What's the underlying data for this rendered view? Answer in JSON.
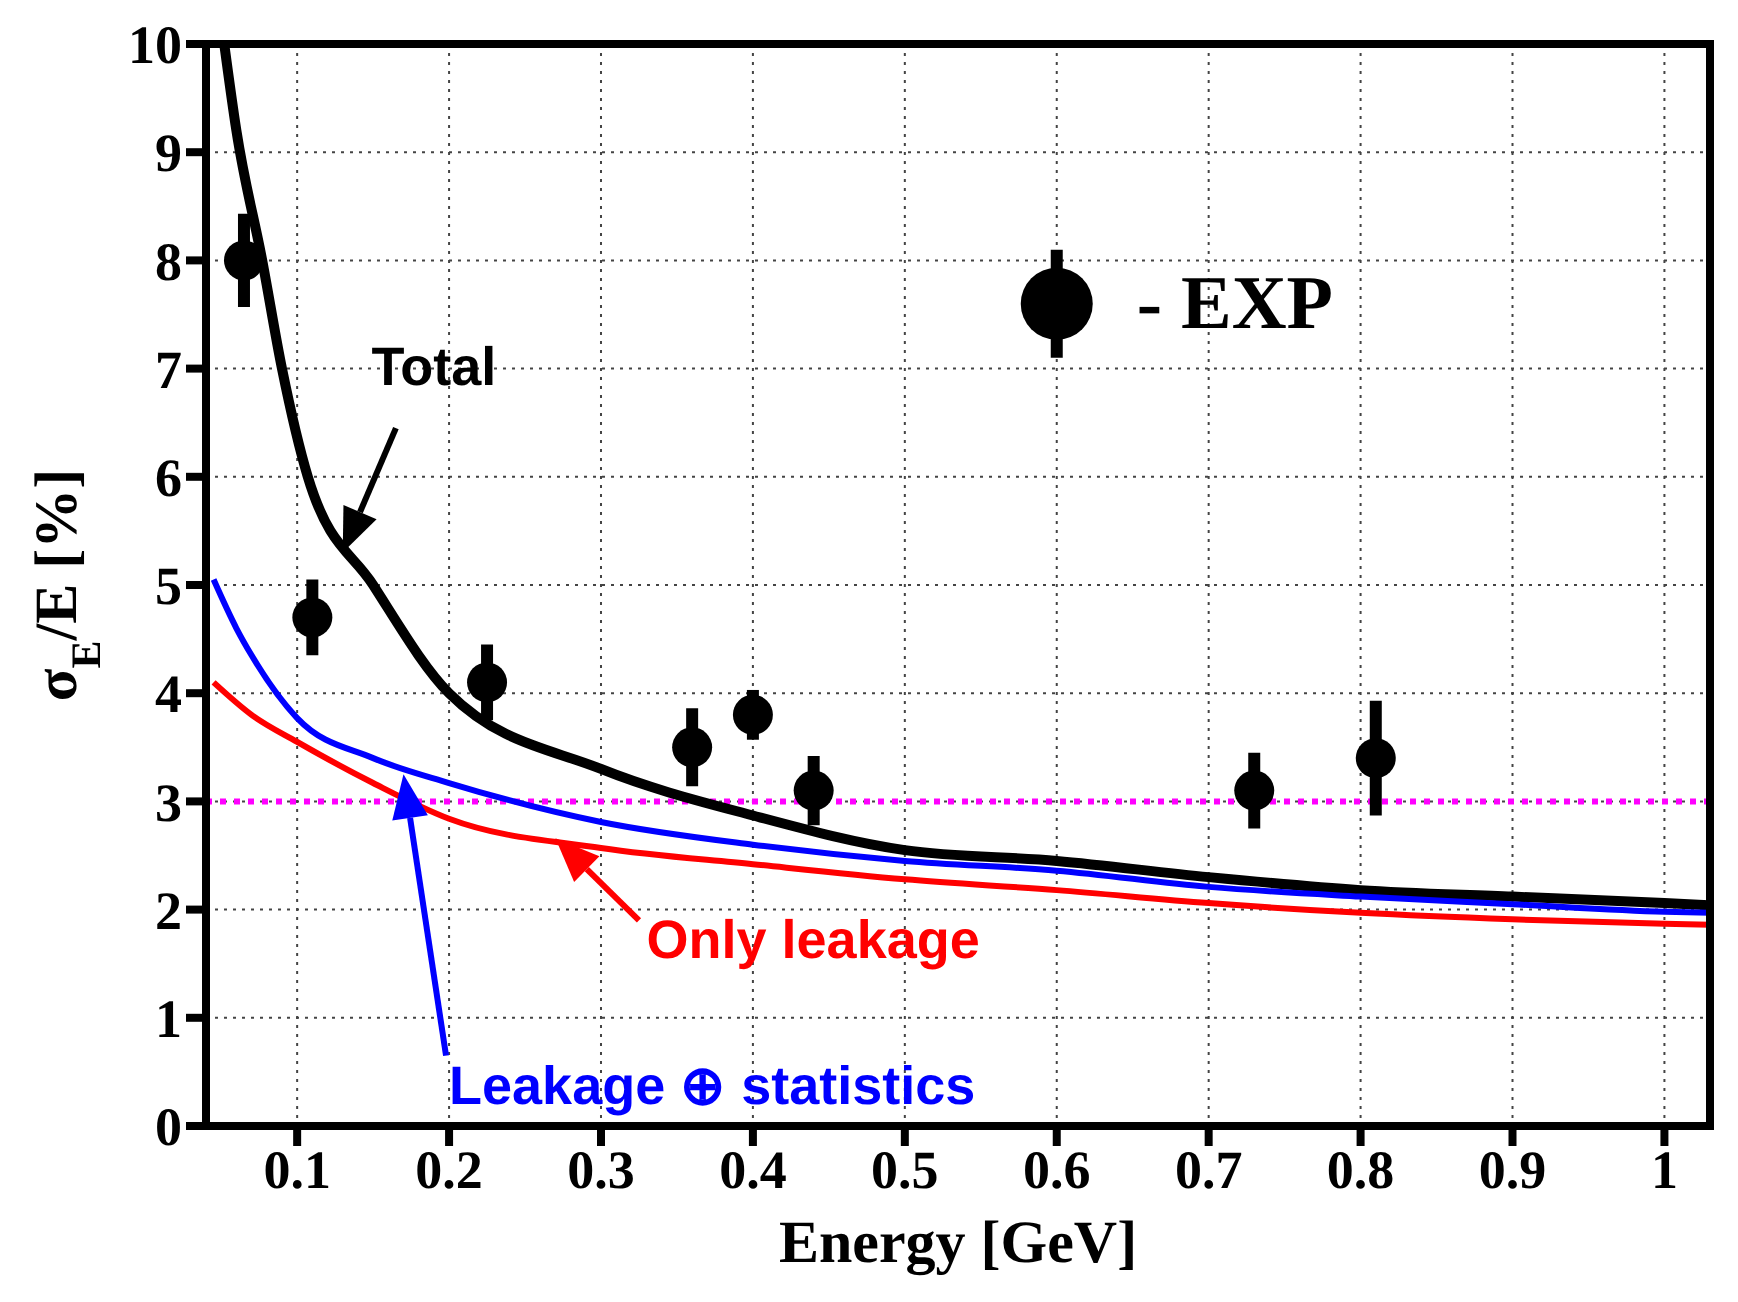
{
  "chart_data": {
    "type": "line",
    "xlabel": "Energy [GeV]",
    "ylabel": "σ$_{E}$/E [%]",
    "xlim": [
      0.04,
      1.03
    ],
    "ylim": [
      0,
      10
    ],
    "xticks": [
      0.1,
      0.2,
      0.3,
      0.4,
      0.5,
      0.6,
      0.7,
      0.8,
      0.9,
      1
    ],
    "yticks": [
      0,
      1,
      2,
      3,
      4,
      5,
      6,
      7,
      8,
      9,
      10
    ],
    "grid": true,
    "legend": "top right",
    "series": [
      {
        "name": "- EXP",
        "type": "scatter",
        "color": "#000000",
        "marker": "circle",
        "x": [
          0.065,
          0.11,
          0.225,
          0.36,
          0.4,
          0.44,
          0.73,
          0.81
        ],
        "values": [
          8.0,
          4.7,
          4.1,
          3.5,
          3.8,
          3.1,
          3.1,
          3.4
        ],
        "errors": [
          0.43,
          0.35,
          0.35,
          0.36,
          0.23,
          0.32,
          0.35,
          0.53
        ]
      },
      {
        "name": "Total",
        "color": "#000000",
        "x": [
          0.052,
          0.06,
          0.077,
          0.09,
          0.107,
          0.15,
          0.2,
          0.3,
          0.4,
          0.5,
          0.6,
          0.7,
          0.8,
          0.9,
          1.0,
          1.03
        ],
        "values": [
          10,
          9.2,
          8,
          7,
          6,
          5,
          4,
          3.3,
          2.87,
          2.55,
          2.45,
          2.3,
          2.18,
          2.12,
          2.06,
          2.04
        ]
      },
      {
        "name": "Leakage ⊕ statistics",
        "color": "#0000ff",
        "x": [
          0.045,
          0.06,
          0.07,
          0.1,
          0.15,
          0.2,
          0.3,
          0.4,
          0.5,
          0.6,
          0.7,
          0.8,
          0.9,
          1.0,
          1.03
        ],
        "values": [
          5.05,
          4.6,
          4.35,
          3.77,
          3.4,
          3.17,
          2.81,
          2.6,
          2.45,
          2.36,
          2.21,
          2.12,
          2.05,
          1.98,
          1.97
        ]
      },
      {
        "name": "Only leakage",
        "color": "#ff0000",
        "x": [
          0.045,
          0.07,
          0.1,
          0.15,
          0.2,
          0.3,
          0.4,
          0.5,
          0.6,
          0.7,
          0.8,
          0.9,
          1.0,
          1.03
        ],
        "values": [
          4.1,
          3.8,
          3.55,
          3.17,
          2.84,
          2.57,
          2.42,
          2.28,
          2.18,
          2.06,
          1.97,
          1.91,
          1.87,
          1.86
        ]
      }
    ],
    "ref_lines": [
      {
        "axis": "y",
        "value": 3,
        "color": "#ff00ff",
        "line_style": "dotted"
      }
    ]
  }
}
